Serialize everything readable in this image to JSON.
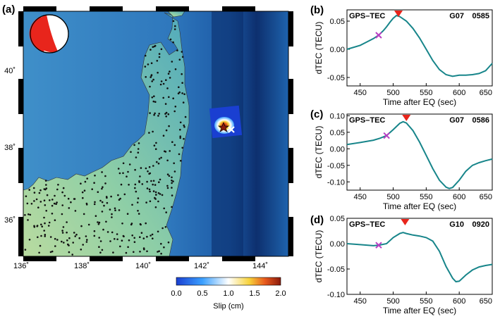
{
  "map_panel": {
    "label": "(a)",
    "lon_ticks": [
      "136˚",
      "138˚",
      "140˚",
      "142˚",
      "144˚"
    ],
    "lat_ticks": [
      "36˚",
      "38˚",
      "40˚"
    ],
    "colorbar": {
      "title": "Slip (cm)",
      "ticks": [
        "0.0",
        "0.5",
        "1.0",
        "1.5",
        "2.0"
      ],
      "colors": [
        "#1a3fd1",
        "#3ba0ff",
        "#ffffff",
        "#f7d23a",
        "#e8591d",
        "#8a1a0c"
      ]
    }
  },
  "chart_data": [
    {
      "panel": "(b)",
      "type": "line",
      "title_left": "GPS–TEC",
      "satellite": "G07",
      "station": "0585",
      "xlabel": "Time after EQ (sec)",
      "ylabel": "dTEC (TECU)",
      "xlim": [
        430,
        650
      ],
      "ylim": [
        -0.065,
        0.07
      ],
      "xticks": [
        "450",
        "500",
        "550",
        "600",
        "650"
      ],
      "yticks": [
        "0.05",
        "0.00",
        "-0.05"
      ],
      "ytick_values": [
        0.05,
        0.0,
        -0.05
      ],
      "x": [
        430,
        450,
        460,
        470,
        478,
        485,
        490,
        495,
        500,
        505,
        510,
        520,
        530,
        540,
        550,
        560,
        570,
        580,
        590,
        600,
        610,
        620,
        630,
        640,
        650
      ],
      "y": [
        0.0,
        0.007,
        0.013,
        0.019,
        0.025,
        0.033,
        0.04,
        0.048,
        0.055,
        0.06,
        0.058,
        0.05,
        0.037,
        0.02,
        0.0,
        -0.02,
        -0.036,
        -0.045,
        -0.048,
        -0.046,
        -0.046,
        -0.045,
        -0.043,
        -0.038,
        -0.025
      ],
      "cross": {
        "x": 478,
        "y": 0.025
      },
      "triangle_x": 508
    },
    {
      "panel": "(c)",
      "type": "line",
      "title_left": "GPS–TEC",
      "satellite": "G07",
      "station": "0586",
      "xlabel": "Time after EQ (sec)",
      "ylabel": "dTEC (TECU)",
      "xlim": [
        430,
        650
      ],
      "ylim": [
        -0.125,
        0.105
      ],
      "xticks": [
        "450",
        "500",
        "550",
        "600",
        "650"
      ],
      "yticks": [
        "0.10",
        "0.05",
        "0.00",
        "-0.05",
        "-0.10"
      ],
      "ytick_values": [
        0.1,
        0.05,
        0.0,
        -0.05,
        -0.1
      ],
      "x": [
        430,
        450,
        470,
        480,
        490,
        500,
        510,
        515,
        520,
        530,
        540,
        550,
        560,
        570,
        580,
        585,
        590,
        600,
        610,
        620,
        630,
        640,
        650
      ],
      "y": [
        0.013,
        0.019,
        0.026,
        0.032,
        0.04,
        0.058,
        0.077,
        0.082,
        0.078,
        0.055,
        0.02,
        -0.02,
        -0.06,
        -0.095,
        -0.116,
        -0.12,
        -0.117,
        -0.095,
        -0.068,
        -0.05,
        -0.042,
        -0.036,
        -0.031
      ],
      "cross": {
        "x": 490,
        "y": 0.04
      },
      "triangle_x": 520
    },
    {
      "panel": "(d)",
      "type": "line",
      "title_left": "GPS–TEC",
      "satellite": "G10",
      "station": "0920",
      "xlabel": "Time after EQ (sec)",
      "ylabel": "dTEC (TECU)",
      "xlim": [
        430,
        650
      ],
      "ylim": [
        -0.1,
        0.05
      ],
      "xticks": [
        "450",
        "500",
        "550",
        "600",
        "650"
      ],
      "yticks": [
        "0.05",
        "0.00",
        "-0.05",
        "-0.10"
      ],
      "ytick_values": [
        0.05,
        0.0,
        -0.05,
        -0.1
      ],
      "x": [
        430,
        450,
        470,
        478,
        490,
        500,
        510,
        515,
        520,
        530,
        540,
        550,
        560,
        570,
        580,
        590,
        595,
        600,
        610,
        620,
        630,
        640,
        650
      ],
      "y": [
        0.0,
        -0.002,
        -0.004,
        -0.003,
        0.0,
        0.012,
        0.02,
        0.022,
        0.02,
        0.017,
        0.015,
        0.012,
        0.005,
        -0.015,
        -0.045,
        -0.068,
        -0.075,
        -0.074,
        -0.062,
        -0.052,
        -0.046,
        -0.043,
        -0.041
      ],
      "cross": {
        "x": 478,
        "y": -0.003
      },
      "triangle_x": 518
    }
  ]
}
